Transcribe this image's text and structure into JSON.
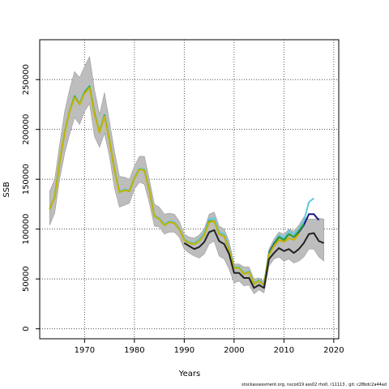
{
  "chart_data": {
    "type": "line",
    "title": "",
    "xlabel": "Years",
    "ylabel": "SSB",
    "xlim": [
      1961,
      2021
    ],
    "ylim": [
      -10000,
      290000
    ],
    "xticks": [
      1970,
      1980,
      1990,
      2000,
      2010,
      2020
    ],
    "xtick_labels": [
      "1970",
      "1980",
      "1990",
      "2000",
      "2010",
      "2020"
    ],
    "yticks": [
      0,
      50000,
      100000,
      150000,
      200000,
      250000
    ],
    "ytick_labels": [
      "0",
      "50000",
      "100000",
      "150000",
      "200000",
      "250000"
    ],
    "grid": true,
    "band": {
      "x": [
        1963,
        1964,
        1965,
        1966,
        1967,
        1968,
        1969,
        1970,
        1971,
        1972,
        1973,
        1974,
        1975,
        1976,
        1977,
        1978,
        1979,
        1980,
        1981,
        1982,
        1983,
        1984,
        1985,
        1986,
        1987,
        1988,
        1989,
        1990,
        1991,
        1992,
        1993,
        1994,
        1995,
        1996,
        1997,
        1998,
        1999,
        2000,
        2001,
        2002,
        2003,
        2004,
        2005,
        2006,
        2007,
        2008,
        2009,
        2010,
        2011,
        2012,
        2013,
        2014,
        2015,
        2016,
        2017,
        2018
      ],
      "upper": [
        138000,
        150000,
        185000,
        218000,
        240000,
        258000,
        252000,
        263000,
        273000,
        240000,
        215000,
        237000,
        208000,
        178000,
        153000,
        152000,
        150000,
        163000,
        173000,
        173000,
        150000,
        125000,
        122000,
        115000,
        116000,
        115000,
        108000,
        95000,
        92000,
        91000,
        94000,
        100000,
        115000,
        117000,
        103000,
        100000,
        88000,
        65000,
        65000,
        62000,
        62000,
        50000,
        51000,
        48000,
        80000,
        90000,
        97000,
        95000,
        100000,
        98000,
        104000,
        112000,
        110000,
        110000,
        111000,
        110000
      ],
      "lower": [
        104000,
        116000,
        150000,
        176000,
        195000,
        212000,
        205000,
        218000,
        226000,
        193000,
        182000,
        196000,
        173000,
        141000,
        122000,
        124000,
        126000,
        140000,
        147000,
        145000,
        126000,
        103000,
        102000,
        95000,
        97000,
        97000,
        92000,
        80000,
        76000,
        73000,
        71000,
        75000,
        85000,
        88000,
        73000,
        70000,
        60000,
        46000,
        48000,
        43000,
        44000,
        35000,
        39000,
        36000,
        63000,
        70000,
        72000,
        68000,
        70000,
        66000,
        68000,
        72000,
        80000,
        80000,
        72000,
        68000
      ]
    },
    "series": [
      {
        "color": "#5ec8de",
        "x": [
          1963,
          1964,
          1965,
          1966,
          1967,
          1968,
          1969,
          1970,
          1971,
          1972,
          1973,
          1974,
          1975,
          1976,
          1977,
          1978,
          1979,
          1980,
          1981,
          1982,
          1983,
          1984,
          1985,
          1986,
          1987,
          1988,
          1989,
          1990,
          1991,
          1992,
          1993,
          1994,
          1995,
          1996,
          1997,
          1998,
          1999,
          2000,
          2001,
          2002,
          2003,
          2004,
          2005,
          2006,
          2007,
          2008,
          2009,
          2010,
          2011,
          2012,
          2013,
          2014,
          2015,
          2016
        ],
        "y": [
          120000,
          133000,
          168000,
          198000,
          219000,
          234000,
          226000,
          238000,
          244000,
          217000,
          198000,
          215000,
          190000,
          160000,
          138000,
          140000,
          139000,
          152000,
          161000,
          160000,
          140000,
          114000,
          111000,
          105000,
          108000,
          107000,
          101000,
          90000,
          87000,
          86000,
          90000,
          96000,
          110000,
          111000,
          97000,
          95000,
          81000,
          62000,
          62000,
          56000,
          58000,
          46000,
          49000,
          45000,
          77000,
          86000,
          94000,
          91000,
          98000,
          95000,
          100000,
          108000,
          127000,
          131000
        ]
      },
      {
        "color": "#1a1a80",
        "x": [
          2007,
          2008,
          2009,
          2010,
          2011,
          2012,
          2013,
          2014,
          2015,
          2016,
          2017
        ],
        "y": [
          76000,
          85000,
          92000,
          89000,
          95000,
          92000,
          97000,
          104000,
          115000,
          115000,
          109000
        ]
      },
      {
        "color": "#2ca02c",
        "x": [
          1963,
          1964,
          1965,
          1966,
          1967,
          1968,
          1969,
          1970,
          1971,
          1972,
          1973,
          1974,
          1975,
          1976,
          1977,
          1978,
          1979,
          1980,
          1981,
          1982,
          1983,
          1984,
          1985,
          1986,
          1987,
          1988,
          1989,
          1990,
          1991,
          1992,
          1993,
          1994,
          1995,
          1996,
          1997,
          1998,
          1999,
          2000,
          2001,
          2002,
          2003,
          2004,
          2005,
          2006,
          2007,
          2008,
          2009,
          2010,
          2011,
          2012,
          2013,
          2014
        ],
        "y": [
          120000,
          132000,
          167000,
          197000,
          218000,
          233000,
          225000,
          237000,
          243000,
          216000,
          197000,
          214000,
          189000,
          159000,
          137000,
          139000,
          138000,
          151000,
          160000,
          159000,
          139000,
          113000,
          110000,
          104000,
          107000,
          106000,
          100000,
          89000,
          86000,
          85000,
          88000,
          94000,
          108000,
          108000,
          95000,
          93000,
          79000,
          61000,
          61000,
          55000,
          57000,
          45000,
          48000,
          44000,
          75000,
          84000,
          92000,
          89000,
          95000,
          92000,
          98000,
          105000
        ]
      },
      {
        "color": "#c8b400",
        "x": [
          1963,
          1964,
          1965,
          1966,
          1967,
          1968,
          1969,
          1970,
          1971,
          1972,
          1973,
          1974,
          1975,
          1976,
          1977,
          1978,
          1979,
          1980,
          1981,
          1982,
          1983,
          1984,
          1985,
          1986,
          1987,
          1988,
          1989,
          1990,
          1991,
          1992,
          1993,
          1994,
          1995,
          1996,
          1997,
          1998,
          1999,
          2000,
          2001,
          2002,
          2003,
          2004,
          2005,
          2006,
          2007,
          2008,
          2009,
          2010,
          2011,
          2012,
          2013
        ],
        "y": [
          120000,
          132000,
          167000,
          197000,
          218000,
          232000,
          225000,
          236000,
          242000,
          215000,
          197000,
          213000,
          189000,
          159000,
          137000,
          139000,
          138000,
          151000,
          160000,
          159000,
          139000,
          113000,
          110000,
          104000,
          107000,
          106000,
          100000,
          89000,
          86000,
          85000,
          88000,
          94000,
          107000,
          108000,
          95000,
          93000,
          79000,
          61000,
          61000,
          55000,
          57000,
          45000,
          48000,
          44000,
          74000,
          83000,
          89000,
          87000,
          91000,
          89000,
          95000
        ]
      },
      {
        "color": "#222222",
        "x": [
          1990,
          1991,
          1992,
          1993,
          1994,
          1995,
          1996,
          1997,
          1998,
          1999,
          2000,
          2001,
          2002,
          2003,
          2004,
          2005,
          2006,
          2007,
          2008,
          2009,
          2010,
          2011,
          2012,
          2013,
          2014,
          2015,
          2016,
          2017,
          2018
        ],
        "y": [
          86000,
          83000,
          80000,
          82000,
          87000,
          97000,
          99000,
          88000,
          85000,
          75000,
          56000,
          56000,
          51000,
          51000,
          41000,
          44000,
          41000,
          70000,
          76000,
          81000,
          78000,
          80000,
          76000,
          80000,
          86000,
          95000,
          96000,
          88000,
          86000
        ]
      }
    ]
  },
  "footer_text": "stockassessment.org,  nscod19  ass02  rho0,  r11113 ,  git:  c28bdc2a44ad"
}
